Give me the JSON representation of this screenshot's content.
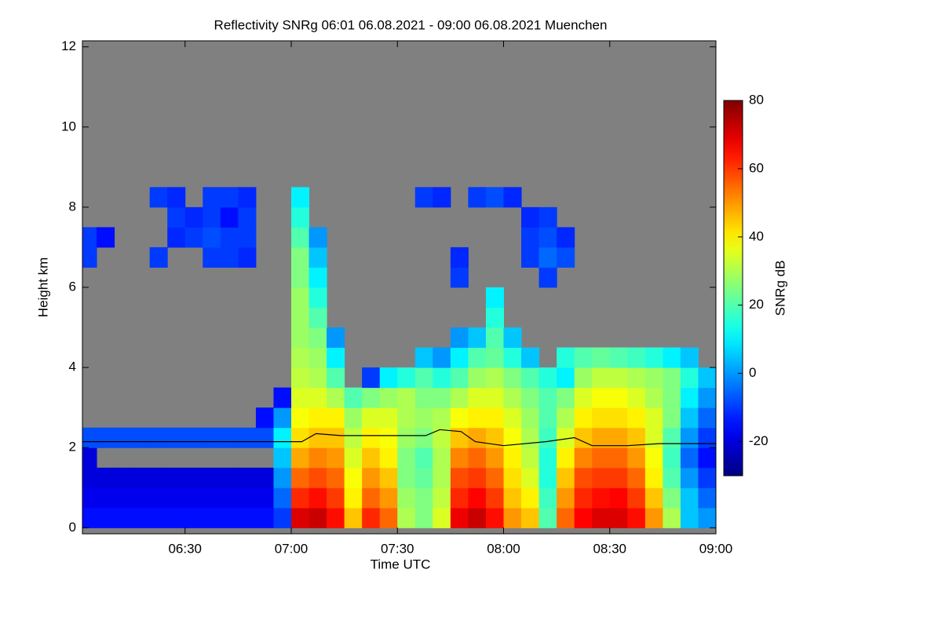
{
  "chart_data": {
    "type": "heatmap",
    "title": "Reflectivity SNRg   06:01 06.08.2021 - 09:00 06.08.2021 Muenchen",
    "x_label": "Time UTC",
    "y_label": "Height km",
    "colorbar_label": "SNRg dB",
    "xlim": [
      361,
      540
    ],
    "xticks": [
      {
        "value": 390,
        "label": "06:30"
      },
      {
        "value": 420,
        "label": "07:00"
      },
      {
        "value": 450,
        "label": "07:30"
      },
      {
        "value": 480,
        "label": "08:00"
      },
      {
        "value": 510,
        "label": "08:30"
      },
      {
        "value": 540,
        "label": "09:00"
      }
    ],
    "ylim": [
      -0.15,
      12.15
    ],
    "yticks": [
      0,
      2,
      4,
      6,
      8,
      10,
      12
    ],
    "zlim": [
      -30,
      80
    ],
    "zticks": [
      -20,
      0,
      20,
      40,
      60,
      80
    ],
    "missing_color": "#808080",
    "x_bins": [
      360,
      365,
      370,
      375,
      380,
      385,
      390,
      395,
      400,
      405,
      410,
      415,
      420,
      425,
      430,
      435,
      440,
      445,
      450,
      455,
      460,
      465,
      470,
      475,
      480,
      485,
      490,
      495,
      500,
      505,
      510,
      515,
      520,
      525,
      530,
      535,
      540
    ],
    "y_bins": [
      0,
      0.5,
      1,
      1.5,
      2,
      2.5,
      3,
      3.5,
      4,
      4.5,
      5,
      5.5,
      6,
      6.5,
      7,
      7.5,
      8,
      8.5
    ],
    "values": [
      [
        -15,
        -15,
        -15,
        -15,
        -15,
        -15,
        -15,
        -15,
        -15,
        -15,
        -15,
        -10,
        70,
        72,
        65,
        45,
        62,
        55,
        30,
        25,
        35,
        68,
        72,
        65,
        50,
        45,
        20,
        55,
        66,
        70,
        70,
        65,
        50,
        30,
        5,
        0
      ],
      [
        -18,
        -18,
        -18,
        -18,
        -18,
        -18,
        -18,
        -18,
        -18,
        -18,
        -18,
        -5,
        62,
        65,
        60,
        40,
        55,
        50,
        28,
        25,
        32,
        62,
        66,
        60,
        45,
        40,
        18,
        50,
        62,
        65,
        66,
        60,
        45,
        25,
        5,
        -5
      ],
      [
        -20,
        -20,
        -20,
        -20,
        -20,
        -20,
        -20,
        -20,
        -20,
        -20,
        -20,
        0,
        55,
        58,
        55,
        38,
        50,
        45,
        25,
        22,
        30,
        58,
        60,
        55,
        42,
        35,
        15,
        45,
        58,
        60,
        60,
        55,
        40,
        20,
        0,
        -10
      ],
      [
        -20,
        null,
        null,
        null,
        null,
        null,
        null,
        null,
        null,
        null,
        null,
        5,
        48,
        52,
        50,
        35,
        45,
        40,
        25,
        20,
        30,
        52,
        55,
        50,
        40,
        32,
        15,
        40,
        52,
        55,
        55,
        50,
        38,
        18,
        -5,
        -15
      ],
      [
        -8,
        -8,
        -8,
        -8,
        -8,
        -8,
        -8,
        -8,
        -8,
        -8,
        -8,
        10,
        42,
        45,
        45,
        32,
        40,
        38,
        28,
        25,
        32,
        45,
        48,
        45,
        38,
        30,
        18,
        35,
        45,
        48,
        48,
        45,
        35,
        20,
        0,
        -10
      ],
      [
        null,
        null,
        null,
        null,
        null,
        null,
        null,
        null,
        null,
        null,
        -15,
        0,
        38,
        40,
        40,
        28,
        35,
        35,
        30,
        28,
        30,
        38,
        40,
        40,
        35,
        28,
        20,
        30,
        40,
        42,
        42,
        40,
        35,
        25,
        5,
        -5
      ],
      [
        null,
        null,
        null,
        null,
        null,
        null,
        null,
        null,
        null,
        null,
        null,
        -15,
        35,
        35,
        30,
        20,
        25,
        28,
        30,
        25,
        25,
        30,
        35,
        35,
        30,
        25,
        20,
        25,
        35,
        38,
        38,
        35,
        30,
        25,
        10,
        0
      ],
      [
        null,
        null,
        null,
        null,
        null,
        null,
        null,
        null,
        null,
        null,
        null,
        null,
        32,
        30,
        20,
        null,
        -10,
        10,
        15,
        20,
        15,
        20,
        28,
        30,
        25,
        20,
        15,
        10,
        28,
        32,
        32,
        30,
        28,
        25,
        15,
        5
      ],
      [
        null,
        null,
        null,
        null,
        null,
        null,
        null,
        null,
        null,
        null,
        null,
        null,
        30,
        28,
        10,
        null,
        null,
        null,
        null,
        5,
        0,
        10,
        20,
        22,
        15,
        5,
        null,
        15,
        20,
        22,
        20,
        18,
        15,
        10,
        5,
        null
      ],
      [
        null,
        null,
        null,
        null,
        null,
        null,
        null,
        null,
        null,
        null,
        null,
        null,
        28,
        25,
        0,
        null,
        null,
        null,
        null,
        null,
        null,
        0,
        5,
        20,
        5,
        null,
        null,
        null,
        null,
        null,
        null,
        null,
        null,
        null,
        null,
        null
      ],
      [
        null,
        null,
        null,
        null,
        null,
        null,
        null,
        null,
        null,
        null,
        null,
        null,
        28,
        20,
        null,
        null,
        null,
        null,
        null,
        null,
        null,
        null,
        null,
        15,
        null,
        null,
        null,
        null,
        null,
        null,
        null,
        null,
        null,
        null,
        null,
        null
      ],
      [
        null,
        null,
        null,
        null,
        null,
        null,
        null,
        null,
        null,
        null,
        null,
        null,
        28,
        15,
        null,
        null,
        null,
        null,
        null,
        null,
        null,
        null,
        null,
        10,
        null,
        null,
        null,
        null,
        null,
        null,
        null,
        null,
        null,
        null,
        null,
        null
      ],
      [
        null,
        null,
        null,
        null,
        null,
        null,
        null,
        null,
        null,
        null,
        null,
        null,
        25,
        10,
        null,
        null,
        null,
        null,
        null,
        null,
        null,
        -10,
        null,
        null,
        null,
        null,
        -10,
        null,
        null,
        null,
        null,
        null,
        null,
        null,
        null,
        null
      ],
      [
        -10,
        null,
        null,
        null,
        -10,
        null,
        null,
        -10,
        -10,
        -12,
        null,
        null,
        25,
        5,
        null,
        null,
        null,
        null,
        null,
        null,
        null,
        -12,
        null,
        null,
        null,
        -10,
        -5,
        -8,
        null,
        null,
        null,
        null,
        null,
        null,
        null,
        null
      ],
      [
        -10,
        -15,
        null,
        null,
        null,
        -12,
        -10,
        -8,
        -10,
        -10,
        null,
        null,
        20,
        0,
        null,
        null,
        null,
        null,
        null,
        null,
        null,
        null,
        null,
        null,
        null,
        -10,
        -8,
        -12,
        null,
        null,
        null,
        null,
        null,
        null,
        null,
        null
      ],
      [
        null,
        null,
        null,
        null,
        null,
        -10,
        -12,
        -10,
        -15,
        -10,
        null,
        null,
        15,
        null,
        null,
        null,
        null,
        null,
        null,
        null,
        null,
        null,
        null,
        null,
        null,
        -12,
        -10,
        null,
        null,
        null,
        null,
        null,
        null,
        null,
        null,
        null
      ],
      [
        null,
        null,
        null,
        null,
        -10,
        -12,
        null,
        -10,
        -10,
        -12,
        null,
        null,
        10,
        null,
        null,
        null,
        null,
        null,
        null,
        -10,
        -12,
        null,
        -10,
        -8,
        -12,
        null,
        null,
        null,
        null,
        null,
        null,
        null,
        null,
        null,
        null,
        null
      ]
    ],
    "line": {
      "color": "#000000",
      "x": [
        361,
        423,
        427,
        434,
        437,
        458,
        462,
        468,
        472,
        480,
        492,
        500,
        505,
        515,
        524,
        532,
        540
      ],
      "values": [
        2.15,
        2.15,
        2.35,
        2.3,
        2.3,
        2.3,
        2.45,
        2.4,
        2.15,
        2.05,
        2.15,
        2.25,
        2.05,
        2.05,
        2.1,
        2.1,
        2.1
      ]
    }
  }
}
